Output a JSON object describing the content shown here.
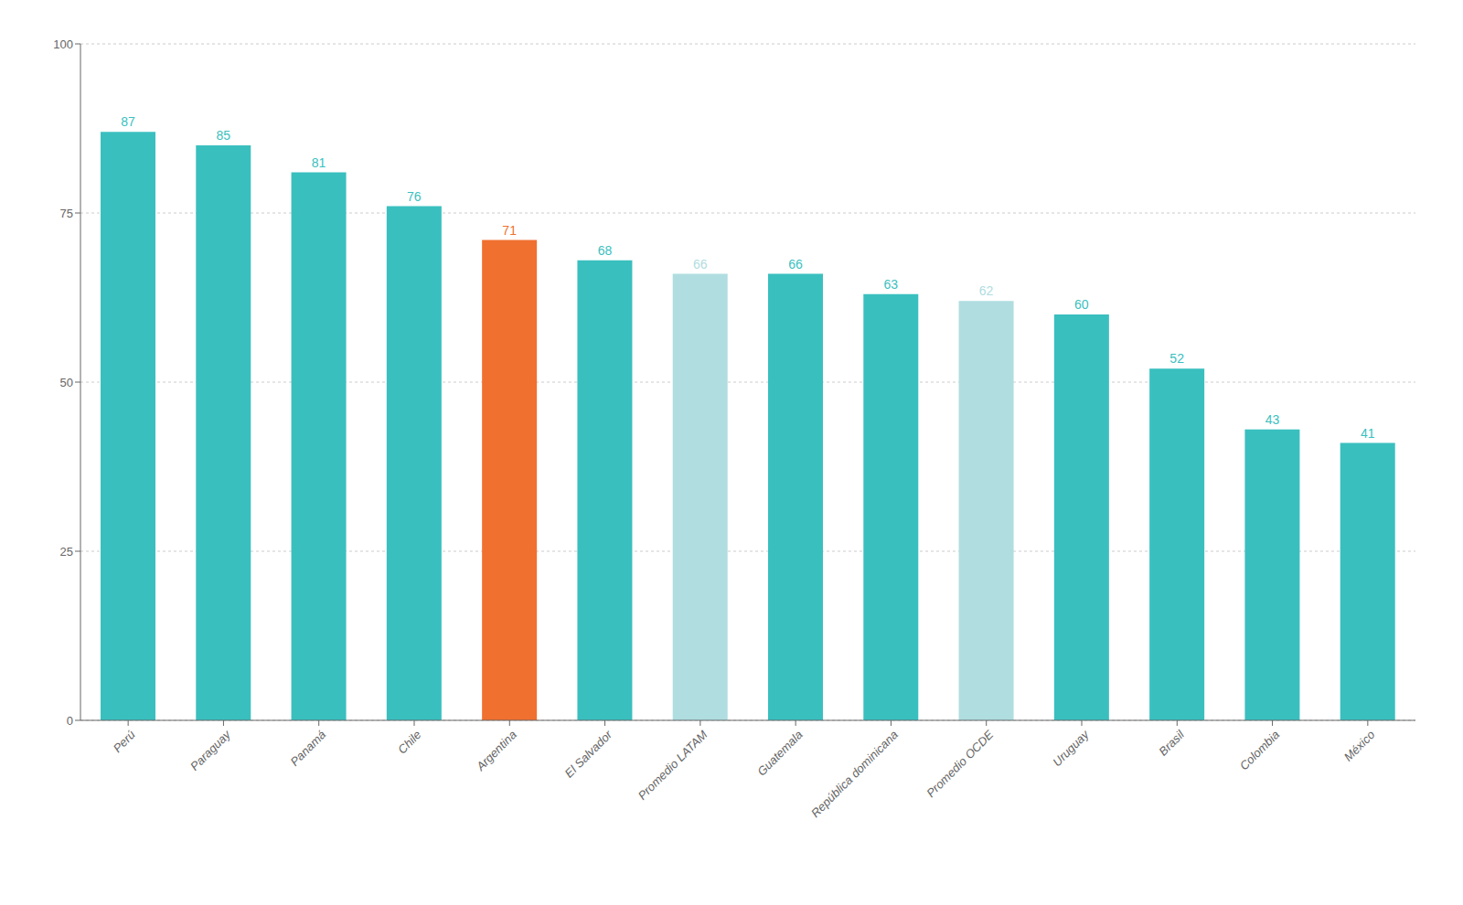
{
  "chart_data": {
    "type": "bar",
    "categories": [
      "Perú",
      "Paraguay",
      "Panamá",
      "Chile",
      "Argentina",
      "El Salvador",
      "Promedio LATAM",
      "Guatemala",
      "República dominicana",
      "Promedio OCDE",
      "Uruguay",
      "Brasil",
      "Colombia",
      "México"
    ],
    "values": [
      87,
      85,
      81,
      76,
      71,
      68,
      66,
      66,
      63,
      62,
      60,
      52,
      43,
      41
    ],
    "colors": [
      "#3abfbf",
      "#3abfbf",
      "#3abfbf",
      "#3abfbf",
      "#f07030",
      "#3abfbf",
      "#b0dde0",
      "#3abfbf",
      "#3abfbf",
      "#b0dde0",
      "#3abfbf",
      "#3abfbf",
      "#3abfbf",
      "#3abfbf"
    ],
    "ylim": [
      0,
      100
    ],
    "yticks": [
      0,
      25,
      50,
      75,
      100
    ],
    "grid": true,
    "data_labels": true
  }
}
